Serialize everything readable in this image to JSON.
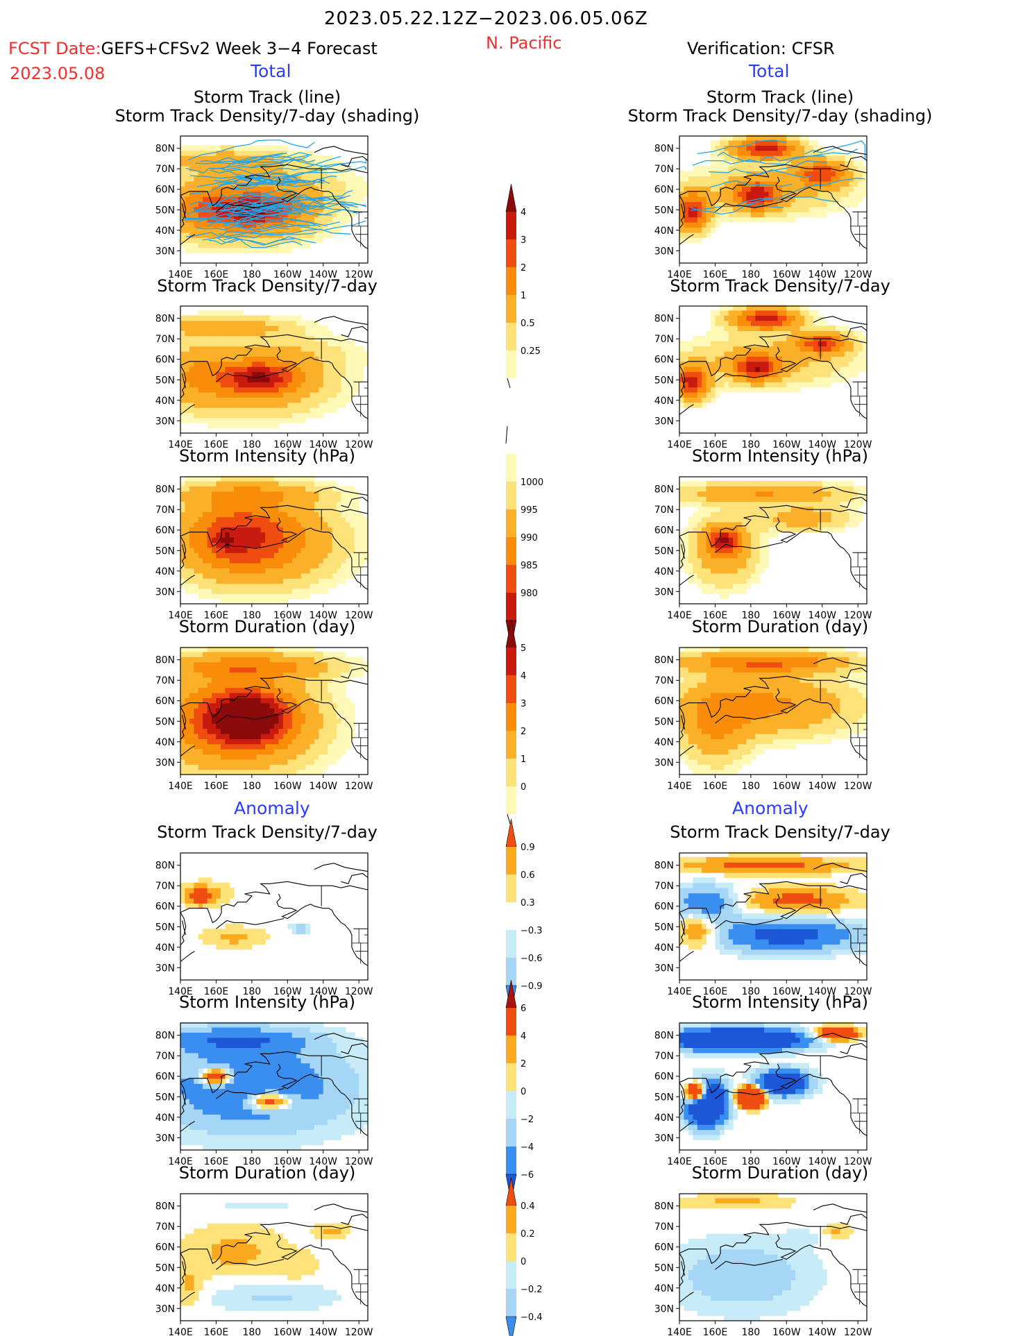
{
  "header": {
    "date_range": "2023.05.22.12Z−2023.06.05.06Z",
    "fcst_label": "FCST Date:",
    "model": "GEFS+CFSv2 Week 3−4 Forecast",
    "fcst_date": "2023.05.08",
    "region": "N. Pacific",
    "verification": "Verification: CFSR",
    "total_left": "Total",
    "total_right": "Total",
    "anomaly_left": "Anomaly",
    "anomaly_right": "Anomaly"
  },
  "colors": {
    "red_text": "#f03030",
    "blue_text": "#2a3cff",
    "track_line": "#29a3e0",
    "seq": [
      "#fff9b8",
      "#fde27a",
      "#fbb02a",
      "#f98d0a",
      "#f04d10",
      "#c81a0e",
      "#8b0a0a"
    ],
    "div": [
      "#1c57d8",
      "#3a8ef0",
      "#a6d6f6",
      "#c7ecf8",
      "#ffffff",
      "#fde27a",
      "#fbaa20",
      "#f04d10",
      "#a8140e"
    ]
  },
  "chart_data": [
    {
      "type": "heatmap",
      "panel": "fc-track",
      "side": "forecast",
      "title": [
        "Storm Track (line)",
        "Storm Track Density/7-day (shading)"
      ],
      "x_ticks": [
        "140E",
        "160E",
        "180",
        "160W",
        "140W",
        "120W"
      ],
      "y_ticks": [
        "80N",
        "70N",
        "60N",
        "50N",
        "40N",
        "30N"
      ],
      "lines": true,
      "field": [
        {
          "lon": 182,
          "lat": 50,
          "v": 3.2,
          "rx": 22,
          "ry": 7
        },
        {
          "lon": 175,
          "lat": 49,
          "v": 2.4,
          "rx": 40,
          "ry": 14
        },
        {
          "lon": 165,
          "lat": 74,
          "v": 1.4,
          "rx": 40,
          "ry": 6
        },
        {
          "lon": 150,
          "lat": 52,
          "v": 1.2,
          "rx": 18,
          "ry": 12
        },
        {
          "lon": 200,
          "lat": 62,
          "v": 0.7,
          "rx": 40,
          "ry": 10
        }
      ]
    },
    {
      "type": "heatmap",
      "panel": "obs-track",
      "side": "verification",
      "title": [
        "Storm Track (line)",
        "Storm Track Density/7-day (shading)"
      ],
      "x_ticks": [
        "140E",
        "160E",
        "180",
        "160W",
        "140W",
        "120W"
      ],
      "y_ticks": [
        "80N",
        "70N",
        "60N",
        "50N",
        "40N",
        "30N"
      ],
      "lines": true,
      "field": [
        {
          "lon": 188,
          "lat": 80,
          "v": 4.5,
          "rx": 18,
          "ry": 5
        },
        {
          "lon": 147,
          "lat": 49,
          "v": 4.2,
          "rx": 9,
          "ry": 9
        },
        {
          "lon": 183,
          "lat": 57,
          "v": 3.8,
          "rx": 12,
          "ry": 7
        },
        {
          "lon": 220,
          "lat": 68,
          "v": 3.5,
          "rx": 14,
          "ry": 6
        },
        {
          "lon": 190,
          "lat": 60,
          "v": 1.2,
          "rx": 45,
          "ry": 12
        }
      ]
    },
    {
      "type": "heatmap",
      "panel": "fc-density",
      "side": "forecast",
      "title": [
        "Storm Track Density/7-day"
      ],
      "x_ticks": [
        "140E",
        "160E",
        "180",
        "160W",
        "140W",
        "120W"
      ],
      "y_ticks": [
        "80N",
        "70N",
        "60N",
        "50N",
        "40N",
        "30N"
      ],
      "field": [
        {
          "lon": 185,
          "lat": 51,
          "v": 3.1,
          "rx": 20,
          "ry": 7
        },
        {
          "lon": 178,
          "lat": 49,
          "v": 2.2,
          "rx": 42,
          "ry": 15
        },
        {
          "lon": 165,
          "lat": 76,
          "v": 1.5,
          "rx": 38,
          "ry": 5
        },
        {
          "lon": 148,
          "lat": 55,
          "v": 1.0,
          "rx": 18,
          "ry": 15
        },
        {
          "lon": 205,
          "lat": 63,
          "v": 0.6,
          "rx": 35,
          "ry": 9
        }
      ]
    },
    {
      "type": "heatmap",
      "panel": "obs-density",
      "side": "verification",
      "title": [
        "Storm Track Density/7-day"
      ],
      "x_ticks": [
        "140E",
        "160E",
        "180",
        "160W",
        "140W",
        "120W"
      ],
      "y_ticks": [
        "80N",
        "70N",
        "60N",
        "50N",
        "40N",
        "30N"
      ],
      "field": [
        {
          "lon": 188,
          "lat": 80,
          "v": 4.5,
          "rx": 18,
          "ry": 5
        },
        {
          "lon": 147,
          "lat": 49,
          "v": 4.4,
          "rx": 9,
          "ry": 8
        },
        {
          "lon": 183,
          "lat": 56,
          "v": 4.0,
          "rx": 12,
          "ry": 6
        },
        {
          "lon": 220,
          "lat": 68,
          "v": 3.6,
          "rx": 14,
          "ry": 5
        },
        {
          "lon": 190,
          "lat": 60,
          "v": 1.3,
          "rx": 45,
          "ry": 12
        }
      ]
    },
    {
      "type": "heatmap",
      "panel": "fc-intensity",
      "side": "forecast",
      "title": [
        "Storm Intensity (hPa)"
      ],
      "x_ticks": [
        "140E",
        "160E",
        "180",
        "160W",
        "140W",
        "120W"
      ],
      "y_ticks": [
        "80N",
        "70N",
        "60N",
        "50N",
        "40N",
        "30N"
      ],
      "field": [
        {
          "lon": 170,
          "lat": 57,
          "v": 2.8,
          "rx": 30,
          "ry": 18
        },
        {
          "lon": 165,
          "lat": 55,
          "v": 1.5,
          "rx": 6,
          "ry": 4
        },
        {
          "lon": 190,
          "lat": 55,
          "v": 2.0,
          "rx": 40,
          "ry": 20
        },
        {
          "lon": 178,
          "lat": 78,
          "v": 1.5,
          "rx": 40,
          "ry": 5
        }
      ]
    },
    {
      "type": "heatmap",
      "panel": "obs-intensity",
      "side": "verification",
      "title": [
        "Storm Intensity (hPa)"
      ],
      "x_ticks": [
        "140E",
        "160E",
        "180",
        "160W",
        "140W",
        "120W"
      ],
      "y_ticks": [
        "80N",
        "70N",
        "60N",
        "50N",
        "40N",
        "30N"
      ],
      "field": [
        {
          "lon": 165,
          "lat": 55,
          "v": 3.8,
          "rx": 9,
          "ry": 6
        },
        {
          "lon": 165,
          "lat": 50,
          "v": 1.8,
          "rx": 18,
          "ry": 16
        },
        {
          "lon": 188,
          "lat": 78,
          "v": 2.0,
          "rx": 45,
          "ry": 5
        },
        {
          "lon": 210,
          "lat": 66,
          "v": 1.5,
          "rx": 25,
          "ry": 6
        }
      ]
    },
    {
      "type": "heatmap",
      "panel": "fc-duration",
      "side": "forecast",
      "title": [
        "Storm Duration (day)"
      ],
      "x_ticks": [
        "140E",
        "160E",
        "180",
        "160W",
        "140W",
        "120W"
      ],
      "y_ticks": [
        "80N",
        "70N",
        "60N",
        "50N",
        "40N",
        "30N"
      ],
      "field": [
        {
          "lon": 178,
          "lat": 52,
          "v": 4.4,
          "rx": 22,
          "ry": 12
        },
        {
          "lon": 170,
          "lat": 50,
          "v": 3.4,
          "rx": 42,
          "ry": 22
        },
        {
          "lon": 178,
          "lat": 77,
          "v": 2.3,
          "rx": 45,
          "ry": 6
        }
      ]
    },
    {
      "type": "heatmap",
      "panel": "obs-duration",
      "side": "verification",
      "title": [
        "Storm Duration (day)"
      ],
      "x_ticks": [
        "140E",
        "160E",
        "180",
        "160W",
        "140W",
        "120W"
      ],
      "y_ticks": [
        "80N",
        "70N",
        "60N",
        "50N",
        "40N",
        "30N"
      ],
      "field": [
        {
          "lon": 188,
          "lat": 79,
          "v": 3.0,
          "rx": 45,
          "ry": 5
        },
        {
          "lon": 190,
          "lat": 58,
          "v": 2.2,
          "rx": 45,
          "ry": 14
        },
        {
          "lon": 160,
          "lat": 48,
          "v": 1.8,
          "rx": 18,
          "ry": 18
        }
      ]
    },
    {
      "type": "heatmap",
      "panel": "fc-anom-density",
      "side": "forecast",
      "title": [
        "Storm Track Density/7-day"
      ],
      "x_ticks": [
        "140E",
        "160E",
        "180",
        "160W",
        "140W",
        "120W"
      ],
      "y_ticks": [
        "80N",
        "70N",
        "60N",
        "50N",
        "40N",
        "30N"
      ],
      "diverging": true,
      "field": [
        {
          "lon": 150,
          "lat": 65,
          "v": 1.0,
          "rx": 7,
          "ry": 4
        },
        {
          "lon": 155,
          "lat": 66,
          "v": 0.5,
          "rx": 14,
          "ry": 6
        },
        {
          "lon": 170,
          "lat": 45,
          "v": 0.5,
          "rx": 18,
          "ry": 5
        },
        {
          "lon": 207,
          "lat": 49,
          "v": -0.5,
          "rx": 6,
          "ry": 3
        }
      ]
    },
    {
      "type": "heatmap",
      "panel": "obs-anom-density",
      "side": "verification",
      "title": [
        "Storm Track Density/7-day"
      ],
      "x_ticks": [
        "140E",
        "160E",
        "180",
        "160W",
        "140W",
        "120W"
      ],
      "y_ticks": [
        "80N",
        "70N",
        "60N",
        "50N",
        "40N",
        "30N"
      ],
      "diverging": true,
      "field": [
        {
          "lon": 188,
          "lat": 80,
          "v": 1.0,
          "rx": 48,
          "ry": 4
        },
        {
          "lon": 200,
          "lat": 46,
          "v": -1.5,
          "rx": 40,
          "ry": 8
        },
        {
          "lon": 155,
          "lat": 62,
          "v": -1.2,
          "rx": 18,
          "ry": 8
        },
        {
          "lon": 205,
          "lat": 63,
          "v": 1.0,
          "rx": 32,
          "ry": 6
        },
        {
          "lon": 150,
          "lat": 48,
          "v": 1.0,
          "rx": 10,
          "ry": 8
        }
      ]
    },
    {
      "type": "heatmap",
      "panel": "fc-anom-intensity",
      "side": "forecast",
      "title": [
        "Storm Intensity (hPa)"
      ],
      "x_ticks": [
        "140E",
        "160E",
        "180",
        "160W",
        "140W",
        "120W"
      ],
      "y_ticks": [
        "80N",
        "70N",
        "60N",
        "50N",
        "40N",
        "30N"
      ],
      "diverging": true,
      "field": [
        {
          "lon": 180,
          "lat": 55,
          "v": -1.2,
          "rx": 55,
          "ry": 22
        },
        {
          "lon": 190,
          "lat": 48,
          "v": 2.0,
          "rx": 12,
          "ry": 4
        },
        {
          "lon": 160,
          "lat": 60,
          "v": 2.5,
          "rx": 8,
          "ry": 4
        },
        {
          "lon": 170,
          "lat": 78,
          "v": -1.0,
          "rx": 40,
          "ry": 6
        }
      ]
    },
    {
      "type": "heatmap",
      "panel": "obs-anom-intensity",
      "side": "verification",
      "title": [
        "Storm Intensity (hPa)"
      ],
      "x_ticks": [
        "140E",
        "160E",
        "180",
        "160W",
        "140W",
        "120W"
      ],
      "y_ticks": [
        "80N",
        "70N",
        "60N",
        "50N",
        "40N",
        "30N"
      ],
      "diverging": true,
      "field": [
        {
          "lon": 180,
          "lat": 50,
          "v": 7.0,
          "rx": 6,
          "ry": 4
        },
        {
          "lon": 155,
          "lat": 47,
          "v": -4.0,
          "rx": 10,
          "ry": 10
        },
        {
          "lon": 172,
          "lat": 78,
          "v": -3.5,
          "rx": 35,
          "ry": 5
        },
        {
          "lon": 150,
          "lat": 52,
          "v": 4.0,
          "rx": 6,
          "ry": 5
        },
        {
          "lon": 198,
          "lat": 57,
          "v": -2.5,
          "rx": 14,
          "ry": 6
        },
        {
          "lon": 228,
          "lat": 81,
          "v": 3.0,
          "rx": 10,
          "ry": 3
        }
      ]
    },
    {
      "type": "heatmap",
      "panel": "fc-anom-duration",
      "side": "forecast",
      "title": [
        "Storm Duration (day)"
      ],
      "x_ticks": [
        "140E",
        "160E",
        "180",
        "160W",
        "140W",
        "120W"
      ],
      "y_ticks": [
        "80N",
        "70N",
        "60N",
        "50N",
        "40N",
        "30N"
      ],
      "diverging": true,
      "field": [
        {
          "lon": 170,
          "lat": 58,
          "v": 0.5,
          "rx": 28,
          "ry": 13
        },
        {
          "lon": 145,
          "lat": 40,
          "v": 0.5,
          "rx": 8,
          "ry": 10
        },
        {
          "lon": 190,
          "lat": 36,
          "v": -0.4,
          "rx": 40,
          "ry": 8
        },
        {
          "lon": 225,
          "lat": 68,
          "v": 0.5,
          "rx": 10,
          "ry": 4
        },
        {
          "lon": 180,
          "lat": 80,
          "v": -0.2,
          "rx": 40,
          "ry": 4
        },
        {
          "lon": 205,
          "lat": 50,
          "v": 0.3,
          "rx": 14,
          "ry": 8
        }
      ]
    },
    {
      "type": "heatmap",
      "panel": "obs-anom-duration",
      "side": "verification",
      "title": [
        "Storm Duration (day)"
      ],
      "x_ticks": [
        "140E",
        "160E",
        "180",
        "160W",
        "140W",
        "120W"
      ],
      "y_ticks": [
        "80N",
        "70N",
        "60N",
        "50N",
        "40N",
        "30N"
      ],
      "diverging": true,
      "field": [
        {
          "lon": 172,
          "lat": 82,
          "v": 0.5,
          "rx": 32,
          "ry": 4
        },
        {
          "lon": 175,
          "lat": 46,
          "v": -0.6,
          "rx": 40,
          "ry": 18
        },
        {
          "lon": 228,
          "lat": 68,
          "v": 0.5,
          "rx": 8,
          "ry": 4
        },
        {
          "lon": 210,
          "lat": 65,
          "v": -0.2,
          "rx": 12,
          "ry": 4
        }
      ]
    }
  ],
  "colorbars": [
    {
      "id": "cb-density",
      "labels": [
        "4",
        "3",
        "2",
        "1",
        "0.5",
        "0.25"
      ]
    },
    {
      "id": "cb-intensity",
      "labels": [
        "1000",
        "995",
        "990",
        "985",
        "980"
      ]
    },
    {
      "id": "cb-duration",
      "labels": [
        "5",
        "4",
        "3",
        "2",
        "1",
        "0"
      ]
    },
    {
      "id": "cb-anom-density",
      "labels": [
        "0.9",
        "0.6",
        "0.3",
        "−0.3",
        "−0.6",
        "−0.9"
      ]
    },
    {
      "id": "cb-anom-intensity",
      "labels": [
        "6",
        "4",
        "2",
        "0",
        "−2",
        "−4",
        "−6"
      ]
    },
    {
      "id": "cb-anom-duration",
      "labels": [
        "0.4",
        "0.2",
        "0",
        "−0.2",
        "−0.4"
      ]
    }
  ]
}
